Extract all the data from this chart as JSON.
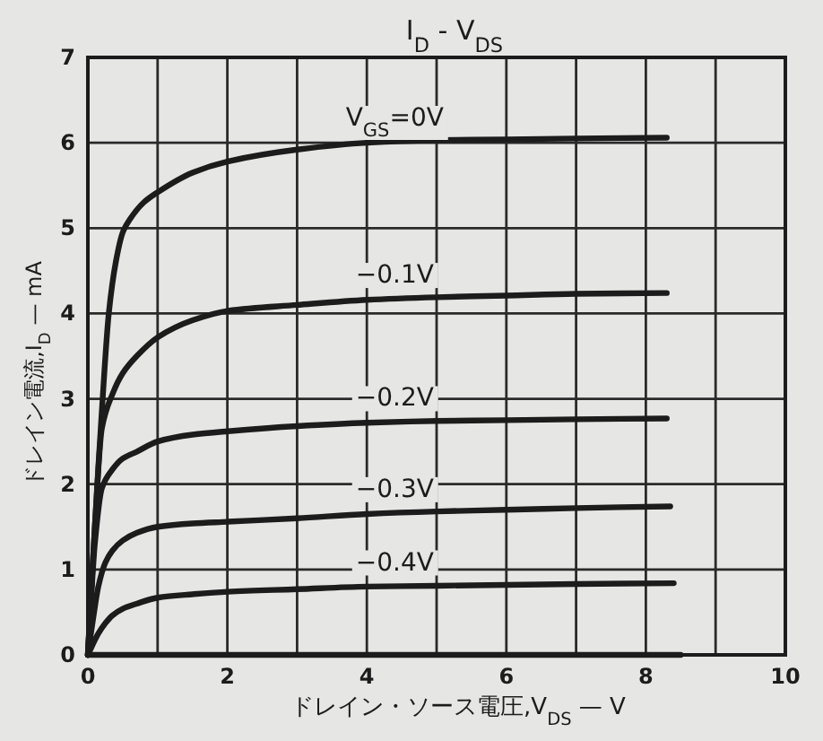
{
  "chart_data": {
    "type": "line",
    "title": "I$_{D}$ - V$_{DS}$",
    "xlabel": "ドレイン・ソース電圧,V$_{DS}$ — V",
    "ylabel": "ドレイン電流,I$_{D}$ — mA",
    "xlim": [
      0,
      10
    ],
    "ylim": [
      0,
      7
    ],
    "xticks": [
      0,
      {
        "value": 1,
        "label": null
      },
      2,
      {
        "value": 3,
        "label": null
      },
      4,
      {
        "value": 5,
        "label": null
      },
      6,
      {
        "value": 7,
        "label": null
      },
      8,
      {
        "value": 9,
        "label": null
      },
      10
    ],
    "yticks": [
      0,
      1,
      2,
      3,
      4,
      5,
      6,
      7
    ],
    "grid": true,
    "series": [
      {
        "name": "V$_{GS}$=0V",
        "color": "#1c1c1c",
        "x": [
          0,
          0.04,
          0.08,
          0.15,
          0.2,
          0.3,
          0.4,
          0.5,
          0.6,
          0.8,
          1.0,
          1.5,
          2,
          3,
          4,
          5,
          6,
          7,
          8.3
        ],
        "values": [
          0,
          0.6,
          1.2,
          2.2,
          2.85,
          4.0,
          4.6,
          4.95,
          5.1,
          5.3,
          5.42,
          5.65,
          5.78,
          5.92,
          6.0,
          6.03,
          6.04,
          6.05,
          6.06
        ]
      },
      {
        "name": "−0.1V",
        "color": "#1c1c1c",
        "x": [
          0,
          0.05,
          0.1,
          0.2,
          0.35,
          0.5,
          0.7,
          1.0,
          1.5,
          2,
          3,
          4,
          5,
          6,
          7,
          8.3
        ],
        "values": [
          0,
          0.8,
          1.5,
          2.65,
          3.05,
          3.3,
          3.5,
          3.72,
          3.92,
          4.03,
          4.1,
          4.16,
          4.19,
          4.21,
          4.23,
          4.24
        ]
      },
      {
        "name": "−0.2V",
        "color": "#1c1c1c",
        "x": [
          0,
          0.05,
          0.1,
          0.2,
          0.35,
          0.5,
          0.7,
          1.0,
          1.5,
          2,
          3,
          4,
          5,
          6,
          7,
          8.3
        ],
        "values": [
          0,
          0.7,
          1.3,
          1.95,
          2.17,
          2.3,
          2.38,
          2.5,
          2.58,
          2.62,
          2.68,
          2.72,
          2.74,
          2.75,
          2.76,
          2.77
        ]
      },
      {
        "name": "−0.3V",
        "color": "#1c1c1c",
        "x": [
          0,
          0.08,
          0.15,
          0.25,
          0.35,
          0.5,
          0.7,
          1.0,
          1.5,
          2,
          3,
          4,
          5,
          6,
          7,
          8.35
        ],
        "values": [
          0,
          0.45,
          0.8,
          1.08,
          1.22,
          1.34,
          1.43,
          1.5,
          1.54,
          1.56,
          1.6,
          1.65,
          1.68,
          1.7,
          1.72,
          1.74
        ]
      },
      {
        "name": "−0.4V",
        "color": "#1c1c1c",
        "x": [
          0,
          0.15,
          0.25,
          0.35,
          0.5,
          0.7,
          1.0,
          1.5,
          2,
          3,
          4,
          5,
          6,
          7,
          8.4
        ],
        "values": [
          0,
          0.25,
          0.37,
          0.46,
          0.54,
          0.6,
          0.67,
          0.71,
          0.74,
          0.77,
          0.8,
          0.81,
          0.82,
          0.83,
          0.84
        ]
      },
      {
        "color": "#1c1c1c",
        "x": [
          0,
          8.5
        ],
        "values": [
          0,
          0
        ]
      }
    ]
  }
}
